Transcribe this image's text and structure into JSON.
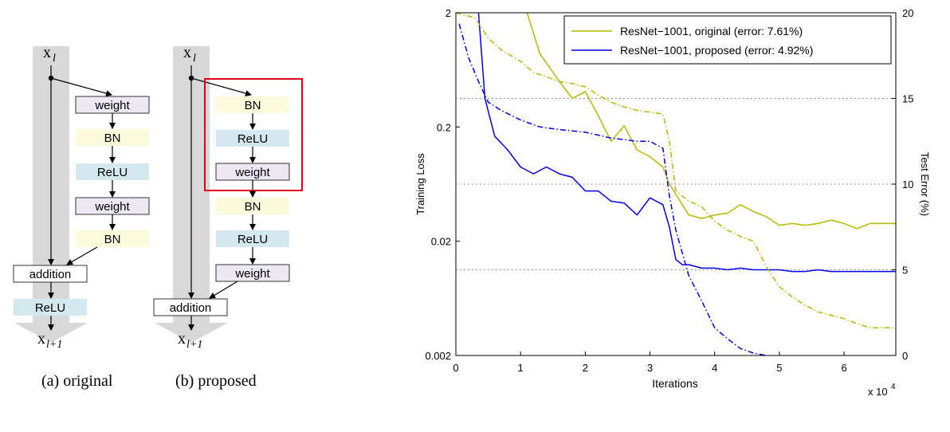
{
  "diagrams": {
    "original": {
      "input_label": "x",
      "input_sub": "l",
      "output_label": "x",
      "output_sub": "l+1",
      "blocks": [
        "weight",
        "BN",
        "ReLU",
        "weight",
        "BN"
      ],
      "addition_label": "addition",
      "post_label": "ReLU",
      "caption": "(a) original"
    },
    "proposed": {
      "input_label": "x",
      "input_sub": "l",
      "output_label": "x",
      "output_sub": "l+1",
      "blocks": [
        "BN",
        "ReLU",
        "weight",
        "BN",
        "ReLU",
        "weight"
      ],
      "addition_label": "addition",
      "caption": "(b) proposed"
    }
  },
  "colors": {
    "weight_fill": "#ece8f4",
    "bn_fill": "#fbfbdc",
    "relu_fill": "#d4e8f0",
    "skip_arrow": "#d8d8d8",
    "highlight": "#e2001a",
    "original_series": "#b8b800",
    "proposed_series": "#0000ee"
  },
  "chart_data": {
    "type": "line",
    "xlabel": "Iterations",
    "x_multiplier": "x 10",
    "x_multiplier_exp": "4",
    "ylabel_left": "Training Loss",
    "ylabel_right": "Test Error (%)",
    "xlim": [
      0,
      6.8
    ],
    "xticks": [
      0,
      1,
      2,
      3,
      4,
      5,
      6
    ],
    "ylim_left": [
      0.002,
      2
    ],
    "yscale_left": "log",
    "yticks_left": [
      "2",
      "0.2",
      "0.02",
      "0.002"
    ],
    "ylim_right": [
      0,
      20
    ],
    "yticks_right": [
      0,
      5,
      10,
      15,
      20
    ],
    "grid": "dotted horizontal at 5, 10, 15",
    "legend_position": "top-right",
    "legend": [
      "ResNet−1001, original (error: 7.61%)",
      "ResNet−1001, proposed (error: 4.92%)"
    ],
    "series": [
      {
        "name": "ResNet−1001, original (error: 7.61%)",
        "kind": "test-error",
        "axis": "right",
        "x": [
          1.1,
          1.3,
          1.6,
          1.8,
          2.0,
          2.2,
          2.4,
          2.6,
          2.8,
          3.0,
          3.2,
          3.3,
          3.4,
          3.6,
          3.8,
          4.0,
          4.2,
          4.4,
          4.6,
          4.8,
          5.0,
          5.2,
          5.4,
          5.6,
          5.8,
          6.0,
          6.2,
          6.4,
          6.6,
          6.8
        ],
        "y": [
          20,
          17.6,
          16.0,
          15.0,
          15.4,
          14.0,
          12.5,
          13.4,
          12.0,
          11.6,
          11.0,
          10.0,
          9.4,
          8.2,
          8.0,
          8.2,
          8.3,
          8.8,
          8.4,
          8.1,
          7.6,
          7.7,
          7.6,
          7.7,
          7.9,
          7.7,
          7.4,
          7.7,
          7.7,
          7.7
        ]
      },
      {
        "name": "ResNet−1001, proposed (error: 4.92%)",
        "kind": "test-error",
        "axis": "right",
        "x": [
          0.35,
          0.45,
          0.6,
          0.8,
          1.0,
          1.2,
          1.4,
          1.6,
          1.8,
          2.0,
          2.2,
          2.4,
          2.6,
          2.8,
          3.0,
          3.2,
          3.3,
          3.4,
          3.5,
          3.6,
          3.8,
          4.0,
          4.2,
          4.4,
          4.6,
          4.8,
          5.0,
          5.2,
          5.4,
          5.6,
          5.8,
          6.0,
          6.2,
          6.4,
          6.6,
          6.8
        ],
        "y": [
          20,
          15.0,
          12.8,
          12.0,
          11.0,
          10.6,
          11.0,
          10.6,
          10.4,
          9.6,
          9.6,
          9.0,
          8.9,
          8.2,
          9.2,
          8.8,
          7.5,
          5.6,
          5.3,
          5.3,
          5.1,
          5.1,
          5.0,
          5.1,
          5.0,
          5.0,
          5.0,
          4.9,
          4.9,
          5.0,
          4.9,
          4.9,
          4.9,
          4.9,
          4.9,
          4.9
        ]
      },
      {
        "name": "ResNet−1001, original (error: 7.61%)",
        "kind": "training-loss",
        "axis": "left",
        "x": [
          0.0,
          0.3,
          0.5,
          0.7,
          1.0,
          1.2,
          1.4,
          1.6,
          1.8,
          2.0,
          2.2,
          2.4,
          2.6,
          2.8,
          3.0,
          3.2,
          3.3,
          3.4,
          3.6,
          3.8,
          4.0,
          4.2,
          4.4,
          4.6,
          4.8,
          5.0,
          5.2,
          5.4,
          5.6,
          5.8,
          6.0,
          6.2,
          6.4,
          6.6,
          6.8
        ],
        "y": [
          2.2,
          1.8,
          1.2,
          0.95,
          0.75,
          0.6,
          0.55,
          0.5,
          0.48,
          0.45,
          0.38,
          0.33,
          0.3,
          0.28,
          0.27,
          0.26,
          0.15,
          0.055,
          0.045,
          0.04,
          0.03,
          0.025,
          0.022,
          0.02,
          0.012,
          0.008,
          0.0065,
          0.0055,
          0.0048,
          0.0045,
          0.0042,
          0.0038,
          0.0035,
          0.0035,
          0.0035
        ]
      },
      {
        "name": "ResNet−1001, proposed (error: 4.92%)",
        "kind": "training-loss",
        "axis": "left",
        "x": [
          0.05,
          0.2,
          0.35,
          0.5,
          0.7,
          1.0,
          1.3,
          1.6,
          2.0,
          2.4,
          2.8,
          3.0,
          3.2,
          3.3,
          3.4,
          3.6,
          3.8,
          4.0,
          4.2,
          4.4,
          4.6,
          4.8
        ],
        "y": [
          1.6,
          0.8,
          0.5,
          0.33,
          0.28,
          0.23,
          0.2,
          0.19,
          0.18,
          0.16,
          0.15,
          0.15,
          0.13,
          0.05,
          0.025,
          0.01,
          0.006,
          0.0035,
          0.0028,
          0.0023,
          0.0021,
          0.002
        ]
      }
    ]
  }
}
